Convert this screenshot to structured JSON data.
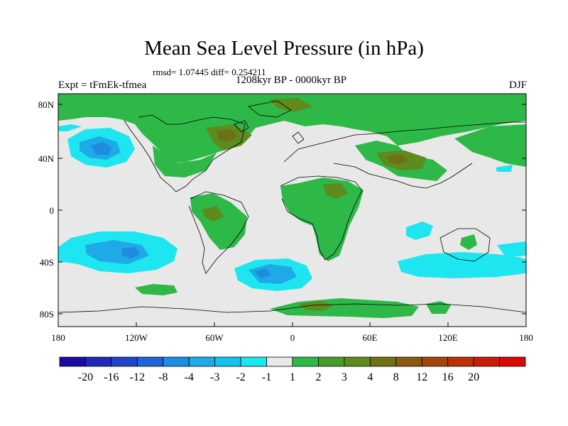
{
  "title": "Mean Sea Level Pressure (in hPa)",
  "stats": "rmsd= 1.07445 diff= 0.254211",
  "period": "1208kyr BP - 0000kyr BP",
  "experiment": "Expt = tFmEk-tfmea",
  "season": "DJF",
  "map": {
    "background_color": "#e8e8e8",
    "lat_ticks": [
      "80N",
      "40N",
      "0",
      "40S",
      "80S"
    ],
    "lon_ticks": [
      "180",
      "120W",
      "60W",
      "0",
      "60E",
      "120E",
      "180"
    ]
  },
  "colorbar": {
    "bins": [
      {
        "color": "#1a0aa0"
      },
      {
        "color": "#1e2ab4"
      },
      {
        "color": "#1e46c4"
      },
      {
        "color": "#1e64d2"
      },
      {
        "color": "#1e8ce0"
      },
      {
        "color": "#1eaae6"
      },
      {
        "color": "#14c4ec"
      },
      {
        "color": "#1ee6f0"
      },
      {
        "color": "#e8e8e8"
      },
      {
        "color": "#2eb848"
      },
      {
        "color": "#4a9a2e"
      },
      {
        "color": "#5e8a1e"
      },
      {
        "color": "#6e7014"
      },
      {
        "color": "#8a5a12"
      },
      {
        "color": "#a24610"
      },
      {
        "color": "#b8320c"
      },
      {
        "color": "#c81c08"
      },
      {
        "color": "#d80804"
      }
    ],
    "labels": [
      "-20",
      "-16",
      "-12",
      "-8",
      "-4",
      "-3",
      "-2",
      "-1",
      "1",
      "2",
      "3",
      "4",
      "8",
      "12",
      "16",
      "20"
    ]
  },
  "colors": {
    "green": "#2eb848",
    "dark_green": "#5e8a1e",
    "brown": "#6e7014",
    "cyan": "#1ee6f0",
    "light_blue": "#1eaae6",
    "blue": "#1e8ce0"
  }
}
